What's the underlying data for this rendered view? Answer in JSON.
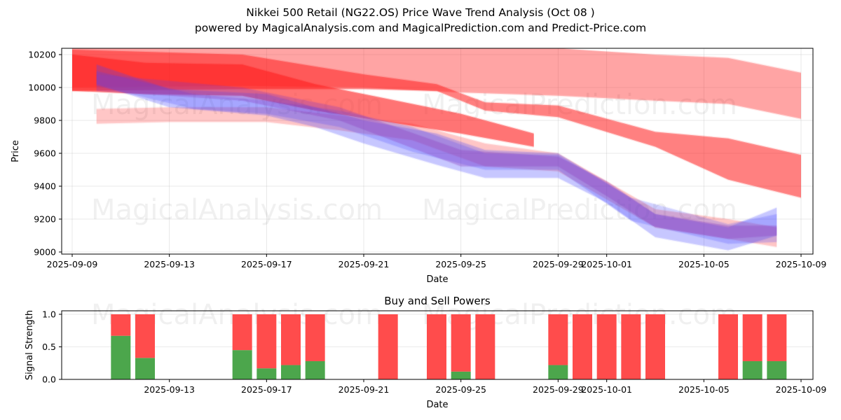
{
  "header": {
    "title": "Nikkei 500 Retail (NG22.OS) Price Wave Trend Analysis (Oct 08 )",
    "subtitle": "powered by MagicalAnalysis.com and MagicalPrediction.com and Predict-Price.com"
  },
  "watermarks": [
    "MagicalAnalysis.com",
    "MagicalPrediction.com"
  ],
  "colors": {
    "red_band": "#ff0000",
    "blue_band": "#0000ff",
    "buy": "#4ca64c",
    "sell": "#ff4c4c"
  },
  "chart_data": [
    {
      "type": "area",
      "title": "",
      "xlabel": "Date",
      "ylabel": "Price",
      "ylim": [
        8995,
        10235
      ],
      "xlim": [
        "2025-09-08",
        "2025-10-09"
      ],
      "grid": true,
      "yticks": [
        9000,
        9200,
        9400,
        9600,
        9800,
        10000,
        10200
      ],
      "xticks": [
        "2025-09-09",
        "2025-09-13",
        "2025-09-17",
        "2025-09-21",
        "2025-09-25",
        "2025-09-29",
        "2025-10-01",
        "2025-10-05",
        "2025-10-09"
      ],
      "series": [
        {
          "name": "upper-red-band",
          "color": "red",
          "opacity": 0.3,
          "x": [
            "2025-09-09",
            "2025-09-16",
            "2025-09-21",
            "2025-09-25",
            "2025-09-29",
            "2025-10-03",
            "2025-10-06",
            "2025-10-09"
          ],
          "upper": [
            10280,
            10270,
            10260,
            10250,
            10240,
            10200,
            10180,
            10090
          ],
          "lower": [
            10000,
            10010,
            10000,
            9970,
            9950,
            9920,
            9900,
            9810
          ]
        },
        {
          "name": "mid-red-band",
          "color": "red",
          "opacity": 0.45,
          "x": [
            "2025-09-09",
            "2025-09-16",
            "2025-09-21",
            "2025-09-24",
            "2025-09-26",
            "2025-09-29",
            "2025-10-03",
            "2025-10-06",
            "2025-10-09"
          ],
          "upper": [
            10230,
            10200,
            10080,
            10020,
            9910,
            9890,
            9730,
            9690,
            9590
          ],
          "lower": [
            9980,
            9990,
            9990,
            9980,
            9860,
            9820,
            9640,
            9440,
            9330
          ]
        },
        {
          "name": "early-red-band",
          "color": "red",
          "opacity": 0.5,
          "x": [
            "2025-09-09",
            "2025-09-12",
            "2025-09-16",
            "2025-09-19",
            "2025-09-22",
            "2025-09-25",
            "2025-09-28"
          ],
          "upper": [
            10200,
            10150,
            10140,
            10020,
            9930,
            9840,
            9720
          ],
          "lower": [
            9980,
            9960,
            9950,
            9860,
            9790,
            9720,
            9640
          ]
        },
        {
          "name": "pale-red-band",
          "color": "red",
          "opacity": 0.18,
          "x": [
            "2025-09-10",
            "2025-09-13",
            "2025-09-17",
            "2025-09-20",
            "2025-09-23",
            "2025-09-26",
            "2025-09-29",
            "2025-10-03",
            "2025-10-06",
            "2025-10-08"
          ],
          "upper": [
            9870,
            9880,
            9880,
            9830,
            9780,
            9660,
            9600,
            9260,
            9200,
            9150
          ],
          "lower": [
            9780,
            9790,
            9790,
            9740,
            9680,
            9520,
            9490,
            9150,
            9080,
            9030
          ]
        },
        {
          "name": "blue-band-1",
          "color": "blue",
          "opacity": 0.22,
          "x": [
            "2025-09-10",
            "2025-09-13",
            "2025-09-17",
            "2025-09-19",
            "2025-09-21",
            "2025-09-24",
            "2025-09-26",
            "2025-09-29",
            "2025-10-01",
            "2025-10-03",
            "2025-10-06",
            "2025-10-08"
          ],
          "upper": [
            10140,
            9990,
            9960,
            9880,
            9800,
            9720,
            9620,
            9600,
            9420,
            9230,
            9150,
            9270
          ],
          "lower": [
            10020,
            9880,
            9830,
            9760,
            9660,
            9530,
            9450,
            9450,
            9300,
            9090,
            9010,
            9100
          ]
        },
        {
          "name": "blue-band-2",
          "color": "blue",
          "opacity": 0.18,
          "x": [
            "2025-09-10",
            "2025-09-14",
            "2025-09-17",
            "2025-09-20",
            "2025-09-23",
            "2025-09-26",
            "2025-09-29",
            "2025-10-02",
            "2025-10-06",
            "2025-10-08"
          ],
          "upper": [
            10100,
            9960,
            9920,
            9860,
            9760,
            9600,
            9590,
            9330,
            9170,
            9230
          ],
          "lower": [
            10010,
            9870,
            9840,
            9760,
            9610,
            9500,
            9500,
            9190,
            9050,
            9060
          ]
        },
        {
          "name": "purple-core-band",
          "color": "purple",
          "opacity": 0.25,
          "x": [
            "2025-09-10",
            "2025-09-16",
            "2025-09-20",
            "2025-09-25",
            "2025-09-29",
            "2025-10-01",
            "2025-10-03",
            "2025-10-06",
            "2025-10-08"
          ],
          "upper": [
            10080,
            10000,
            9880,
            9620,
            9580,
            9430,
            9230,
            9160,
            9160
          ],
          "lower": [
            9980,
            9920,
            9800,
            9520,
            9520,
            9340,
            9150,
            9080,
            9100
          ]
        }
      ]
    },
    {
      "type": "bar",
      "stacked": true,
      "title": "Buy and Sell Powers",
      "xlabel": "Date",
      "ylabel": "Signal Strength",
      "ylim": [
        0,
        1.05
      ],
      "grid": true,
      "yticks": [
        0.0,
        0.5,
        1.0
      ],
      "xticks": [
        "2025-09-13",
        "2025-09-17",
        "2025-09-21",
        "2025-09-25",
        "2025-09-29",
        "2025-10-01",
        "2025-10-05",
        "2025-10-09"
      ],
      "categories": [
        "2025-09-11",
        "2025-09-12",
        "2025-09-16",
        "2025-09-17",
        "2025-09-18",
        "2025-09-19",
        "2025-09-22",
        "2025-09-24",
        "2025-09-25",
        "2025-09-26",
        "2025-09-29",
        "2025-09-30",
        "2025-10-01",
        "2025-10-02",
        "2025-10-03",
        "2025-10-06",
        "2025-10-07",
        "2025-10-08"
      ],
      "series": [
        {
          "name": "Buy",
          "values": [
            0.67,
            0.33,
            0.45,
            0.17,
            0.22,
            0.28,
            0.0,
            0.0,
            0.12,
            0.0,
            0.22,
            0.0,
            0.0,
            0.0,
            0.0,
            0.0,
            0.28,
            0.28
          ]
        },
        {
          "name": "Sell",
          "values": [
            0.33,
            0.67,
            0.55,
            0.83,
            0.78,
            0.72,
            1.0,
            1.0,
            0.88,
            1.0,
            0.78,
            1.0,
            1.0,
            1.0,
            1.0,
            1.0,
            0.72,
            0.72
          ]
        }
      ]
    }
  ]
}
